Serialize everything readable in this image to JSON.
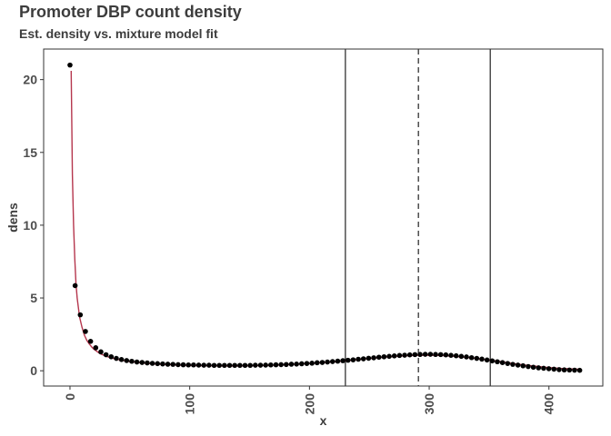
{
  "title": "Promoter DBP count density",
  "subtitle": "Est. density vs. mixture model fit",
  "chart_data": {
    "type": "scatter",
    "title": "Promoter DBP count density",
    "subtitle": "Est. density vs. mixture model fit",
    "xlabel": "x",
    "ylabel": "dens",
    "xlim": [
      -22,
      445
    ],
    "ylim": [
      -1.05,
      22.1
    ],
    "x_ticks": [
      0,
      100,
      200,
      300,
      400
    ],
    "x_tick_labels": [
      "0",
      "100",
      "200",
      "300",
      "400"
    ],
    "y_ticks": [
      0,
      5,
      10,
      15,
      20
    ],
    "y_tick_labels": [
      "0",
      "5",
      "10",
      "15",
      "20"
    ],
    "grid": false,
    "point_color": "#000000",
    "fit_color": "#b5364d",
    "vline_color": "#333333",
    "vlines": [
      {
        "x": 230,
        "style": "solid"
      },
      {
        "x": 291,
        "style": "dashed"
      },
      {
        "x": 351,
        "style": "solid"
      }
    ],
    "series": [
      {
        "type": "points",
        "x": [
          0,
          4.3,
          8.6,
          12.9,
          17.2,
          21.5,
          25.8,
          30.1,
          34.4,
          38.7,
          43,
          47.3,
          51.6,
          55.9,
          60.2,
          64.5,
          68.8,
          73.1,
          77.4,
          81.7,
          86,
          90.3,
          94.6,
          98.9,
          103.2,
          107.5,
          111.8,
          116.1,
          120.4,
          124.7,
          129,
          133.3,
          137.6,
          141.9,
          146.2,
          150.5,
          154.8,
          159.1,
          163.4,
          167.7,
          172,
          176.3,
          180.6,
          184.9,
          189.2,
          193.5,
          197.8,
          202.1,
          206.4,
          210.7,
          215,
          219.3,
          223.6,
          227.9,
          232.2,
          236.5,
          240.8,
          245.1,
          249.4,
          253.7,
          258,
          262.3,
          266.6,
          270.9,
          275.2,
          279.5,
          283.8,
          288.1,
          292.4,
          296.7,
          301,
          305.3,
          309.6,
          313.9,
          318.2,
          322.5,
          326.8,
          331.1,
          335.4,
          339.7,
          344,
          348.3,
          352.6,
          356.9,
          361.2,
          365.5,
          369.8,
          374.1,
          378.4,
          382.7,
          387,
          391.3,
          395.6,
          399.9,
          404.2,
          408.5,
          412.8,
          417.1,
          421.4,
          425.7
        ],
        "y": [
          21,
          5.85,
          3.84,
          2.7,
          2.02,
          1.58,
          1.3,
          1.1,
          0.96,
          0.85,
          0.77,
          0.7,
          0.65,
          0.6,
          0.57,
          0.54,
          0.51,
          0.49,
          0.47,
          0.45,
          0.44,
          0.42,
          0.41,
          0.4,
          0.4,
          0.39,
          0.38,
          0.38,
          0.37,
          0.37,
          0.37,
          0.37,
          0.37,
          0.37,
          0.37,
          0.37,
          0.38,
          0.38,
          0.39,
          0.4,
          0.41,
          0.42,
          0.43,
          0.45,
          0.46,
          0.48,
          0.5,
          0.52,
          0.55,
          0.57,
          0.6,
          0.63,
          0.66,
          0.69,
          0.72,
          0.75,
          0.79,
          0.82,
          0.86,
          0.89,
          0.93,
          0.96,
          0.99,
          1.02,
          1.05,
          1.07,
          1.09,
          1.11,
          1.12,
          1.13,
          1.13,
          1.12,
          1.11,
          1.09,
          1.06,
          1.03,
          0.99,
          0.95,
          0.9,
          0.85,
          0.8,
          0.74,
          0.68,
          0.62,
          0.56,
          0.5,
          0.44,
          0.39,
          0.34,
          0.29,
          0.24,
          0.2,
          0.17,
          0.14,
          0.11,
          0.08,
          0.06,
          0.05,
          0.04,
          0.03
        ]
      },
      {
        "type": "fit",
        "x": [
          1,
          2,
          3,
          4,
          5,
          6,
          8,
          10,
          12,
          14,
          16,
          18,
          20,
          25,
          30,
          35,
          40,
          50,
          60,
          70,
          80,
          90,
          100,
          110,
          120,
          130,
          140,
          150,
          160,
          170,
          180,
          190,
          200,
          210,
          220,
          230,
          240,
          250,
          260,
          270,
          280,
          290,
          300,
          310,
          320,
          330,
          340,
          350,
          360,
          370,
          380,
          390,
          400,
          410,
          420,
          427
        ],
        "y": [
          20.6,
          13.5,
          10.0,
          7.7,
          6.0,
          5.0,
          3.7,
          3.0,
          2.45,
          2.1,
          1.85,
          1.65,
          1.48,
          1.18,
          1.0,
          0.87,
          0.77,
          0.63,
          0.54,
          0.47,
          0.43,
          0.39,
          0.37,
          0.35,
          0.34,
          0.33,
          0.33,
          0.34,
          0.36,
          0.38,
          0.42,
          0.46,
          0.5,
          0.55,
          0.61,
          0.68,
          0.76,
          0.84,
          0.92,
          0.98,
          1.03,
          1.06,
          1.07,
          1.05,
          1.0,
          0.93,
          0.84,
          0.73,
          0.62,
          0.5,
          0.39,
          0.3,
          0.22,
          0.16,
          0.12,
          0.1
        ]
      }
    ]
  }
}
